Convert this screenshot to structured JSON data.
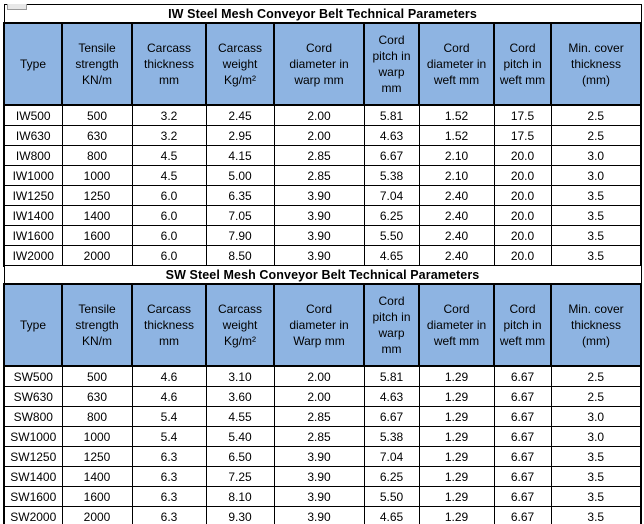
{
  "colors": {
    "header_background": "#8EB4E2",
    "grid_border": "#000000",
    "title_background": "#FFFFFF",
    "text": "#000000"
  },
  "tables": [
    {
      "title": "IW Steel Mesh Conveyor Belt Technical Parameters",
      "columns": [
        "Type",
        "Tensile strength KN/m",
        "Carcass thickness mm",
        "Carcass weight Kg/m²",
        "Cord diameter in warp mm",
        "Cord pitch in warp mm",
        "Cord diameter in weft mm",
        "Cord pitch in weft mm",
        "Min. cover thickness (mm)"
      ],
      "rows": [
        [
          "IW500",
          "500",
          "3.2",
          "2.45",
          "2.00",
          "5.81",
          "1.52",
          "17.5",
          "2.5"
        ],
        [
          "IW630",
          "630",
          "3.2",
          "2.95",
          "2.00",
          "4.63",
          "1.52",
          "17.5",
          "2.5"
        ],
        [
          "IW800",
          "800",
          "4.5",
          "4.15",
          "2.85",
          "6.67",
          "2.10",
          "20.0",
          "3.0"
        ],
        [
          "IW1000",
          "1000",
          "4.5",
          "5.00",
          "2.85",
          "5.38",
          "2.10",
          "20.0",
          "3.0"
        ],
        [
          "IW1250",
          "1250",
          "6.0",
          "6.35",
          "3.90",
          "7.04",
          "2.40",
          "20.0",
          "3.5"
        ],
        [
          "IW1400",
          "1400",
          "6.0",
          "7.05",
          "3.90",
          "6.25",
          "2.40",
          "20.0",
          "3.5"
        ],
        [
          "IW1600",
          "1600",
          "6.0",
          "7.90",
          "3.90",
          "5.50",
          "2.40",
          "20.0",
          "3.5"
        ],
        [
          "IW2000",
          "2000",
          "6.0",
          "8.50",
          "3.90",
          "4.65",
          "2.40",
          "20.0",
          "3.5"
        ]
      ]
    },
    {
      "title": "SW Steel Mesh Conveyor Belt Technical Parameters",
      "columns": [
        "Type",
        "Tensile strength KN/m",
        "Carcass thickness mm",
        "Carcass weight Kg/m²",
        "Cord diameter in Warp mm",
        "Cord pitch in warp mm",
        "Cord diameter in weft mm",
        "Cord pitch in weft mm",
        "Min. cover thickness (mm)"
      ],
      "rows": [
        [
          "SW500",
          "500",
          "4.6",
          "3.10",
          "2.00",
          "5.81",
          "1.29",
          "6.67",
          "2.5"
        ],
        [
          "SW630",
          "630",
          "4.6",
          "3.60",
          "2.00",
          "4.63",
          "1.29",
          "6.67",
          "2.5"
        ],
        [
          "SW800",
          "800",
          "5.4",
          "4.55",
          "2.85",
          "6.67",
          "1.29",
          "6.67",
          "3.0"
        ],
        [
          "SW1000",
          "1000",
          "5.4",
          "5.40",
          "2.85",
          "5.38",
          "1.29",
          "6.67",
          "3.0"
        ],
        [
          "SW1250",
          "1250",
          "6.3",
          "6.50",
          "3.90",
          "7.04",
          "1.29",
          "6.67",
          "3.5"
        ],
        [
          "SW1400",
          "1400",
          "6.3",
          "7.25",
          "3.90",
          "6.25",
          "1.29",
          "6.67",
          "3.5"
        ],
        [
          "SW1600",
          "1600",
          "6.3",
          "8.10",
          "3.90",
          "5.50",
          "1.29",
          "6.67",
          "3.5"
        ],
        [
          "SW2000",
          "2000",
          "6.3",
          "9.30",
          "3.90",
          "4.65",
          "1.29",
          "6.67",
          "3.5"
        ]
      ]
    }
  ]
}
